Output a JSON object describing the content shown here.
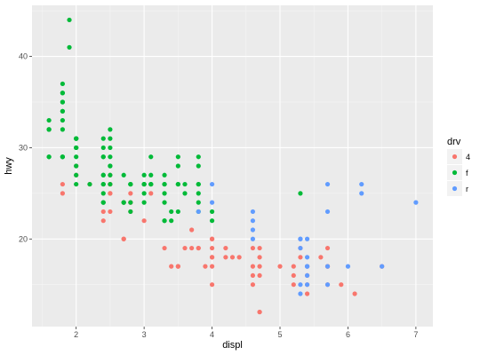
{
  "chart_data": {
    "type": "scatter",
    "xlabel": "displ",
    "ylabel": "hwy",
    "xlim": [
      1.35,
      7.25
    ],
    "ylim": [
      10.4,
      45.6
    ],
    "x_ticks": [
      2,
      3,
      4,
      5,
      6,
      7
    ],
    "y_ticks": [
      20,
      30,
      40
    ],
    "grid": true,
    "legend": {
      "title": "drv",
      "placement": "right"
    },
    "series": [
      {
        "name": "4",
        "color": "#F8766D",
        "points": [
          [
            1.8,
            26
          ],
          [
            1.8,
            25
          ],
          [
            2.0,
            28
          ],
          [
            2.0,
            27
          ],
          [
            2.8,
            25
          ],
          [
            2.8,
            24
          ],
          [
            3.1,
            25
          ],
          [
            2.2,
            26
          ],
          [
            2.5,
            23
          ],
          [
            2.5,
            25
          ],
          [
            3.0,
            22
          ],
          [
            2.7,
            20
          ],
          [
            2.7,
            20
          ],
          [
            2.4,
            22
          ],
          [
            2.4,
            23
          ],
          [
            2.5,
            26
          ],
          [
            2.5,
            25
          ],
          [
            2.5,
            26
          ],
          [
            2.5,
            27
          ],
          [
            2.8,
            23
          ],
          [
            3.3,
            19
          ],
          [
            3.5,
            17
          ],
          [
            3.4,
            17
          ],
          [
            3.6,
            19
          ],
          [
            4.0,
            19
          ],
          [
            4.0,
            20
          ],
          [
            4.0,
            18
          ],
          [
            4.0,
            17
          ],
          [
            4.0,
            15
          ],
          [
            4.2,
            19
          ],
          [
            4.3,
            18
          ],
          [
            4.6,
            17
          ],
          [
            4.6,
            16
          ],
          [
            4.6,
            15
          ],
          [
            4.7,
            18
          ],
          [
            4.7,
            17
          ],
          [
            4.7,
            19
          ],
          [
            4.7,
            16
          ],
          [
            4.7,
            12
          ],
          [
            4.7,
            12
          ],
          [
            5.0,
            17
          ],
          [
            5.2,
            17
          ],
          [
            5.2,
            15
          ],
          [
            5.3,
            19
          ],
          [
            5.3,
            18
          ],
          [
            5.4,
            17
          ],
          [
            5.4,
            15
          ],
          [
            5.7,
            17
          ],
          [
            5.7,
            15
          ],
          [
            5.9,
            15
          ],
          [
            6.1,
            14
          ],
          [
            6.5,
            17
          ],
          [
            5.4,
            14
          ],
          [
            5.4,
            16
          ],
          [
            3.8,
            19
          ],
          [
            3.8,
            19
          ],
          [
            3.9,
            17
          ],
          [
            4.0,
            18
          ],
          [
            4.2,
            18
          ],
          [
            3.7,
            21
          ],
          [
            3.7,
            19
          ],
          [
            3.0,
            26
          ],
          [
            4.4,
            18
          ],
          [
            4.6,
            19
          ],
          [
            5.6,
            18
          ],
          [
            5.7,
            19
          ],
          [
            5.7,
            17
          ],
          [
            5.2,
            16
          ],
          [
            3.5,
            17
          ],
          [
            4.0,
            20
          ],
          [
            2.7,
            24
          ],
          [
            2.8,
            24
          ]
        ]
      },
      {
        "name": "f",
        "color": "#00BA38",
        "points": [
          [
            1.8,
            29
          ],
          [
            1.8,
            29
          ],
          [
            2.0,
            31
          ],
          [
            2.0,
            30
          ],
          [
            2.8,
            26
          ],
          [
            2.8,
            26
          ],
          [
            3.1,
            27
          ],
          [
            3.8,
            26
          ],
          [
            3.8,
            25
          ],
          [
            3.8,
            28
          ],
          [
            2.4,
            27
          ],
          [
            3.0,
            25
          ],
          [
            3.3,
            26
          ],
          [
            3.3,
            24
          ],
          [
            3.3,
            27
          ],
          [
            3.8,
            23
          ],
          [
            3.8,
            24
          ],
          [
            4.0,
            22
          ],
          [
            2.4,
            25
          ],
          [
            2.4,
            31
          ],
          [
            2.5,
            29
          ],
          [
            2.5,
            30
          ],
          [
            3.5,
            26
          ],
          [
            3.5,
            29
          ],
          [
            3.0,
            26
          ],
          [
            3.0,
            24
          ],
          [
            3.5,
            26
          ],
          [
            1.8,
            35
          ],
          [
            1.8,
            37
          ],
          [
            1.8,
            35
          ],
          [
            1.8,
            29
          ],
          [
            1.8,
            32
          ],
          [
            1.8,
            34
          ],
          [
            1.8,
            33
          ],
          [
            1.8,
            36
          ],
          [
            1.8,
            36
          ],
          [
            1.9,
            44
          ],
          [
            1.9,
            41
          ],
          [
            2.0,
            31
          ],
          [
            2.0,
            30
          ],
          [
            2.0,
            27
          ],
          [
            2.0,
            29
          ],
          [
            2.0,
            26
          ],
          [
            2.0,
            28
          ],
          [
            2.0,
            30
          ],
          [
            2.4,
            24
          ],
          [
            2.4,
            24
          ],
          [
            2.4,
            29
          ],
          [
            2.4,
            30
          ],
          [
            2.5,
            31
          ],
          [
            2.5,
            32
          ],
          [
            2.5,
            27
          ],
          [
            2.5,
            26
          ],
          [
            2.4,
            27
          ],
          [
            3.0,
            26
          ],
          [
            3.3,
            22
          ],
          [
            3.3,
            22
          ],
          [
            3.6,
            26
          ],
          [
            3.5,
            28
          ],
          [
            3.8,
            29
          ],
          [
            3.8,
            26
          ],
          [
            2.5,
            28
          ],
          [
            2.7,
            24
          ],
          [
            2.7,
            24
          ],
          [
            2.8,
            26
          ],
          [
            3.1,
            26
          ],
          [
            3.1,
            26
          ],
          [
            3.1,
            26
          ],
          [
            1.6,
            33
          ],
          [
            1.6,
            32
          ],
          [
            1.6,
            32
          ],
          [
            1.6,
            29
          ],
          [
            1.6,
            32
          ],
          [
            1.6,
            29
          ],
          [
            1.8,
            34
          ],
          [
            2.2,
            26
          ],
          [
            2.4,
            26
          ],
          [
            2.4,
            29
          ],
          [
            2.5,
            28
          ],
          [
            2.8,
            23
          ],
          [
            2.8,
            24
          ],
          [
            3.1,
            29
          ],
          [
            3.3,
            25
          ],
          [
            3.4,
            22
          ],
          [
            3.5,
            23
          ],
          [
            2.0,
            31
          ],
          [
            2.7,
            27
          ],
          [
            3.0,
            27
          ],
          [
            3.3,
            26
          ],
          [
            3.6,
            25
          ],
          [
            4.0,
            23
          ],
          [
            5.3,
            25
          ],
          [
            3.0,
            26
          ],
          [
            2.4,
            26
          ],
          [
            3.4,
            23
          ]
        ]
      },
      {
        "name": "r",
        "color": "#619CFF",
        "points": [
          [
            5.3,
            20
          ],
          [
            5.3,
            15
          ],
          [
            5.3,
            20
          ],
          [
            5.7,
            17
          ],
          [
            6.0,
            17
          ],
          [
            5.7,
            26
          ],
          [
            5.7,
            23
          ],
          [
            6.2,
            26
          ],
          [
            6.2,
            25
          ],
          [
            7.0,
            24
          ],
          [
            5.3,
            19
          ],
          [
            5.3,
            14
          ],
          [
            5.7,
            15
          ],
          [
            6.5,
            17
          ],
          [
            3.8,
            23
          ],
          [
            4.0,
            26
          ],
          [
            4.0,
            24
          ],
          [
            4.6,
            22
          ],
          [
            4.6,
            23
          ],
          [
            4.6,
            21
          ],
          [
            4.6,
            20
          ],
          [
            5.4,
            17
          ],
          [
            5.4,
            20
          ],
          [
            5.4,
            18
          ],
          [
            5.4,
            16
          ],
          [
            5.4,
            17
          ],
          [
            5.4,
            15
          ]
        ]
      }
    ]
  }
}
